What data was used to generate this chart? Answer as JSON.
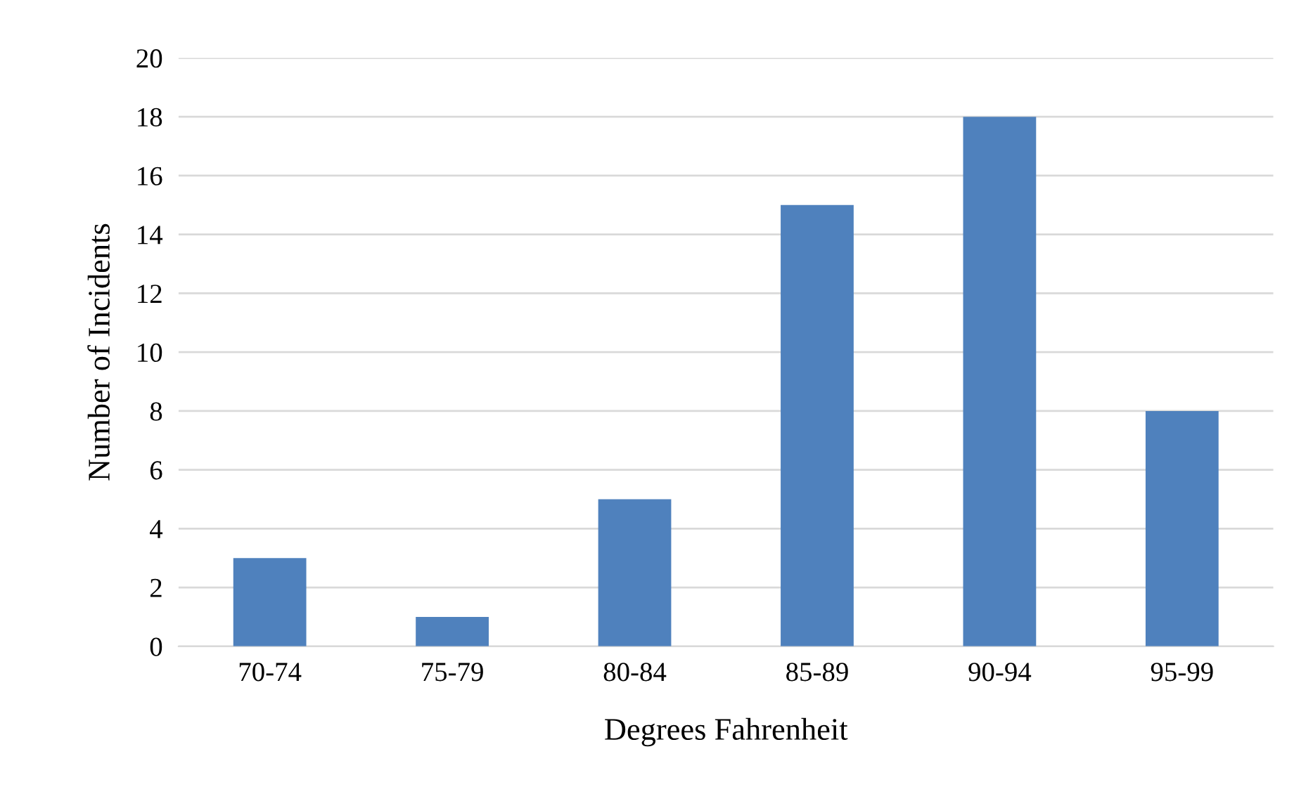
{
  "chart_data": {
    "type": "bar",
    "xlabel": "Degrees Fahrenheit",
    "ylabel": "Number of Incidents",
    "categories": [
      "70-74",
      "75-79",
      "80-84",
      "85-89",
      "90-94",
      "95-99"
    ],
    "values": [
      3,
      1,
      5,
      15,
      18,
      8
    ],
    "color": "#4f81bd",
    "ylim": [
      0,
      20
    ],
    "yticks": [
      0,
      2,
      4,
      6,
      8,
      10,
      12,
      14,
      16,
      18,
      20
    ],
    "grid": "y",
    "legend": false
  }
}
